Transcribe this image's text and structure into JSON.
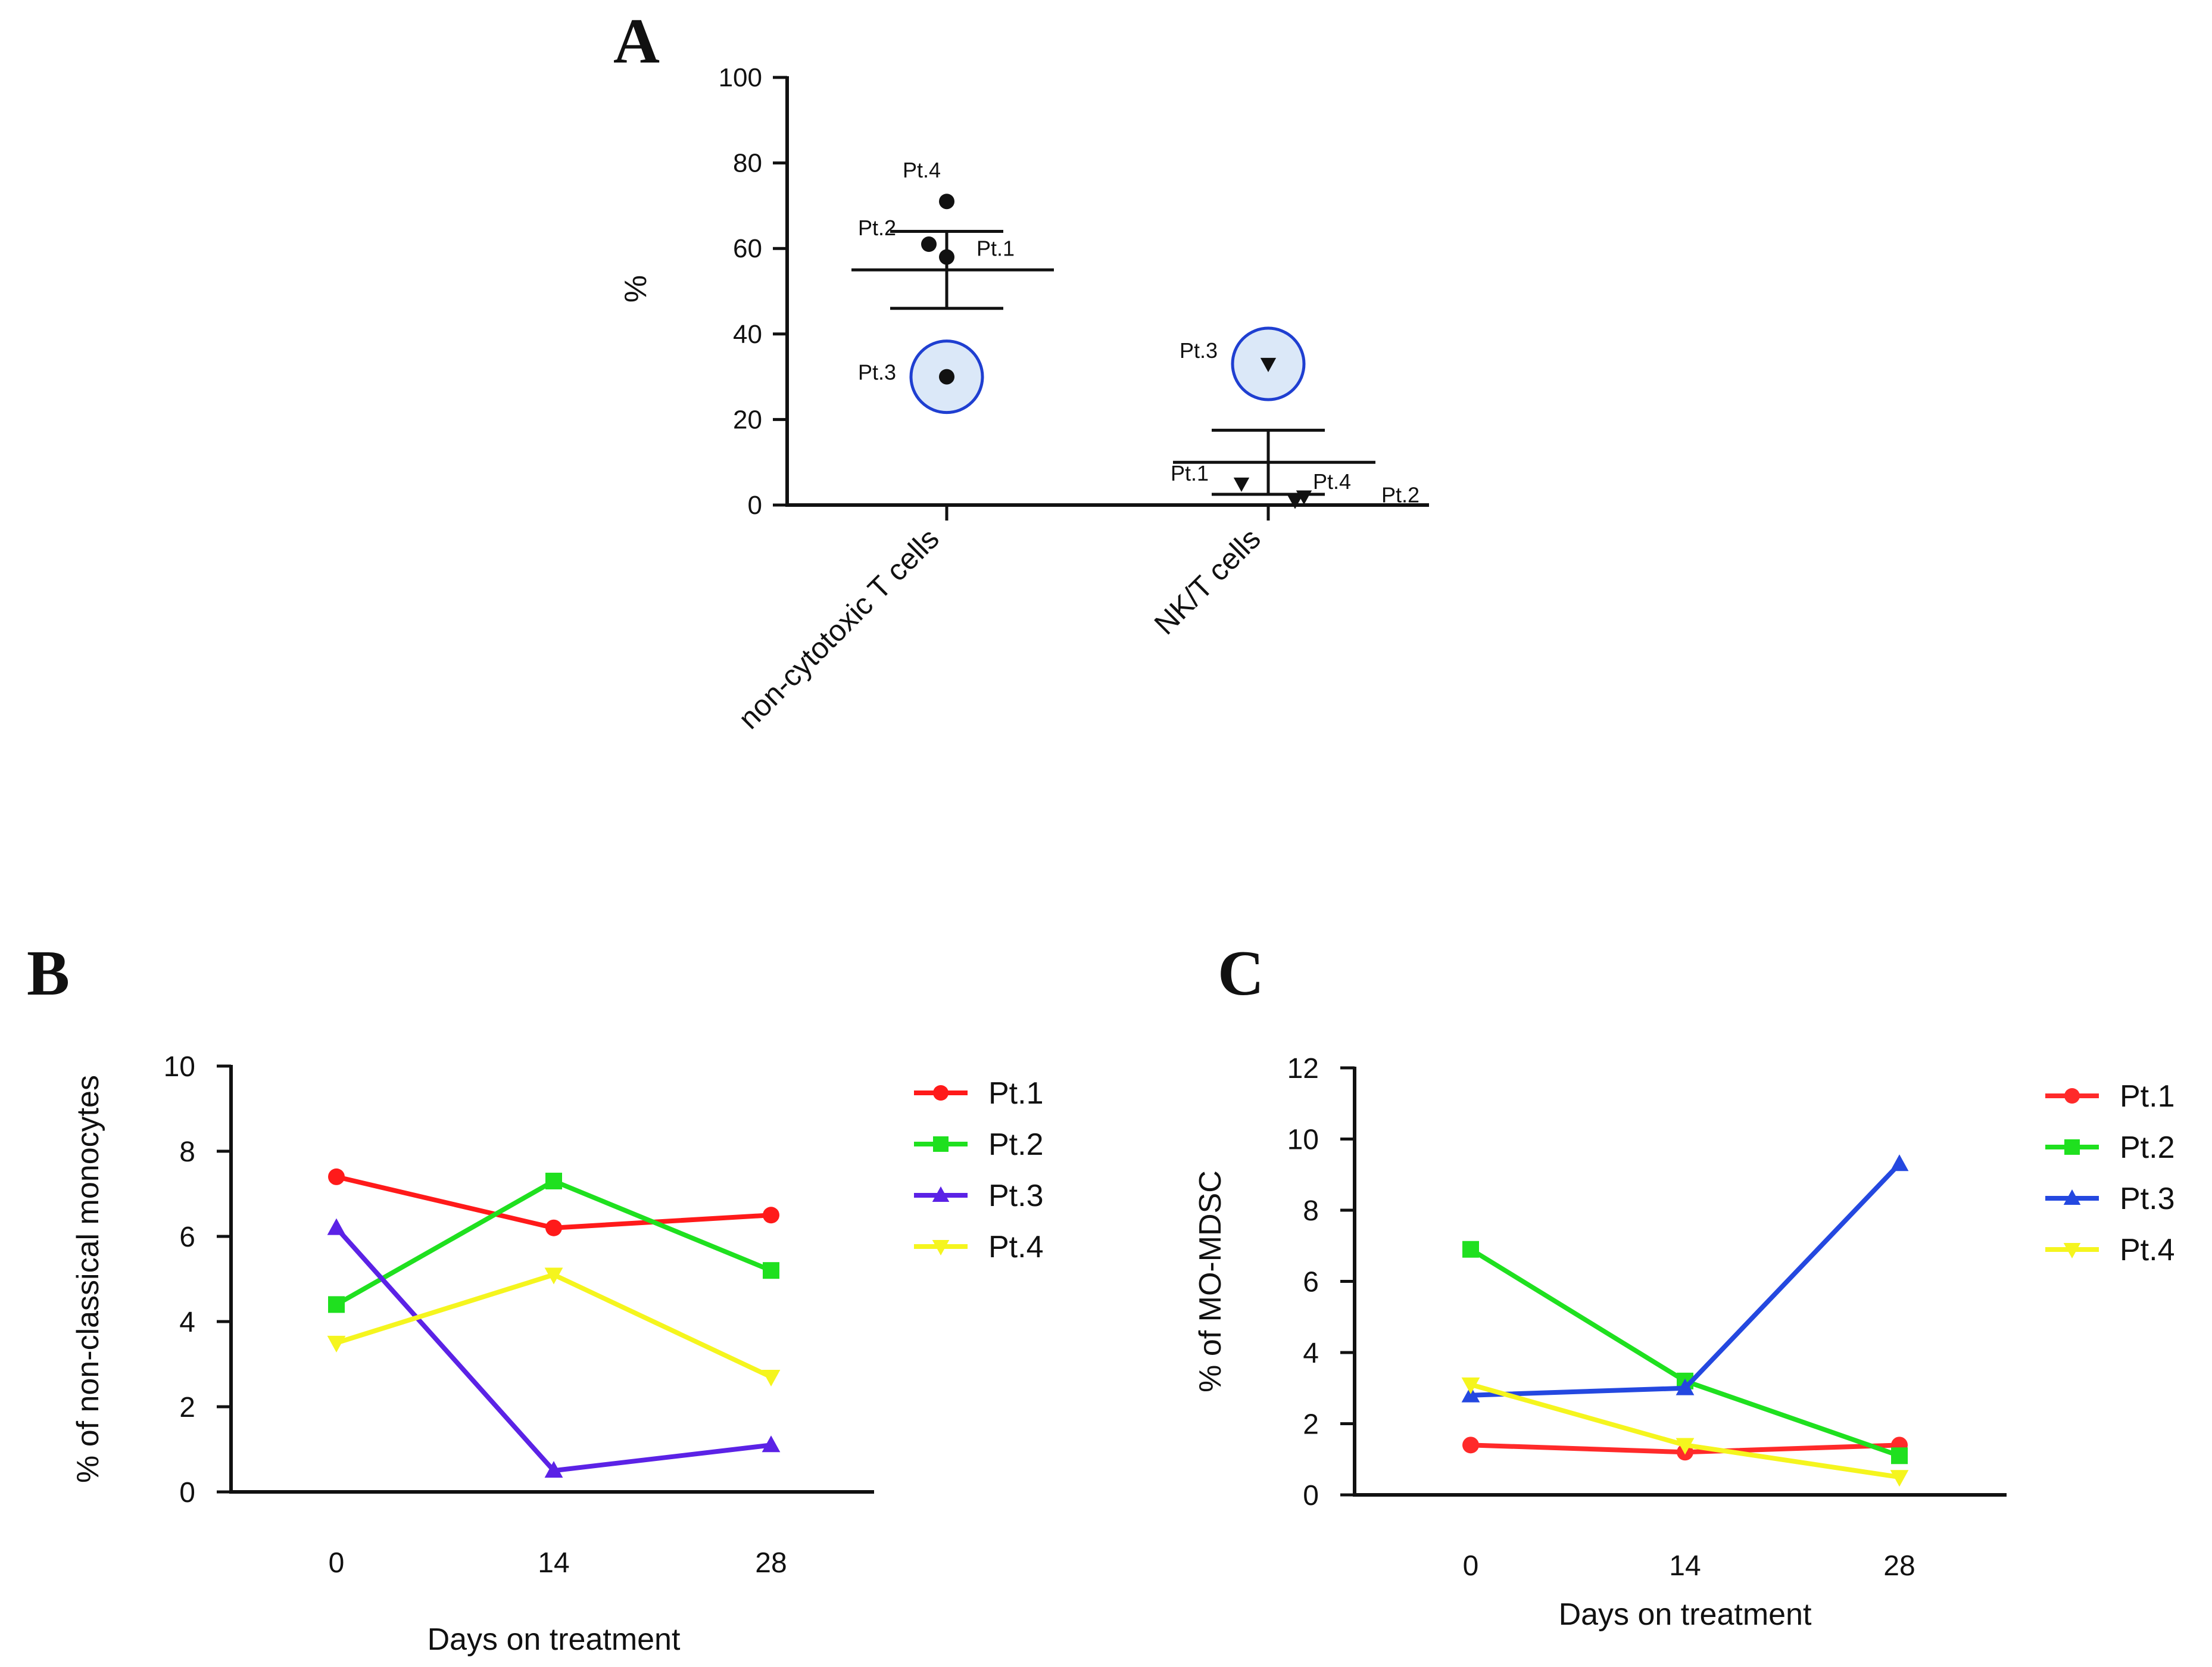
{
  "chart_data": [
    {
      "panel": "A",
      "type": "scatter",
      "ylabel": "%",
      "ylim": [
        0,
        100
      ],
      "yticks": [
        "0",
        "20",
        "40",
        "60",
        "80",
        "100"
      ],
      "categories": [
        "non-cytotoxic T cells",
        "NK/T cells"
      ],
      "groups": [
        {
          "category": "non-cytotoxic T cells",
          "marker": "circle",
          "mean": 55,
          "error_upper": 64,
          "error_lower": 46,
          "points": [
            {
              "label": "Pt.1",
              "value": 58
            },
            {
              "label": "Pt.2",
              "value": 61
            },
            {
              "label": "Pt.3",
              "value": 30,
              "highlighted": true
            },
            {
              "label": "Pt.4",
              "value": 71
            }
          ]
        },
        {
          "category": "NK/T cells",
          "marker": "triangle-down",
          "mean": 10,
          "error_upper": 17.5,
          "error_lower": 2.5,
          "points": [
            {
              "label": "Pt.1",
              "value": 5
            },
            {
              "label": "Pt.2",
              "value": 2
            },
            {
              "label": "Pt.3",
              "value": 33,
              "highlighted": true
            },
            {
              "label": "Pt.4",
              "value": 1
            }
          ]
        }
      ],
      "highlight_color": "#1f3fd1",
      "highlight_fill": "#dbe8f8"
    },
    {
      "panel": "B",
      "type": "line",
      "xlabel": "Days on treatment",
      "ylabel": "% of non-classical monocytes",
      "x": [
        0,
        14,
        28
      ],
      "xticks": [
        "0",
        "14",
        "28"
      ],
      "ylim": [
        0,
        10
      ],
      "yticks": [
        "0",
        "2",
        "4",
        "6",
        "8",
        "10"
      ],
      "legend_position": "right",
      "series": [
        {
          "name": "Pt.1",
          "color": "#ff1a1a",
          "marker": "circle",
          "values": [
            7.4,
            6.2,
            6.5
          ]
        },
        {
          "name": "Pt.2",
          "color": "#1fe01f",
          "marker": "square",
          "values": [
            4.4,
            7.3,
            5.2
          ]
        },
        {
          "name": "Pt.3",
          "color": "#5b22e6",
          "marker": "triangle-up",
          "values": [
            6.2,
            0.5,
            1.1
          ]
        },
        {
          "name": "Pt.4",
          "color": "#f5f51e",
          "marker": "triangle-down",
          "values": [
            3.5,
            5.1,
            2.7
          ]
        }
      ]
    },
    {
      "panel": "C",
      "type": "line",
      "xlabel": "Days on treatment",
      "ylabel": "% of MO-MDSC",
      "x": [
        0,
        14,
        28
      ],
      "xticks": [
        "0",
        "14",
        "28"
      ],
      "ylim": [
        0,
        12
      ],
      "yticks": [
        "0",
        "2",
        "4",
        "6",
        "8",
        "10",
        "12"
      ],
      "legend_position": "right",
      "series": [
        {
          "name": "Pt.1",
          "color": "#ff2a2a",
          "marker": "circle",
          "values": [
            1.4,
            1.2,
            1.4
          ]
        },
        {
          "name": "Pt.2",
          "color": "#1fe01f",
          "marker": "square",
          "values": [
            6.9,
            3.2,
            1.1
          ]
        },
        {
          "name": "Pt.3",
          "color": "#2448e0",
          "marker": "triangle-up",
          "values": [
            2.8,
            3.0,
            9.3
          ]
        },
        {
          "name": "Pt.4",
          "color": "#f5f51e",
          "marker": "triangle-down",
          "values": [
            3.1,
            1.4,
            0.5
          ]
        }
      ]
    }
  ]
}
